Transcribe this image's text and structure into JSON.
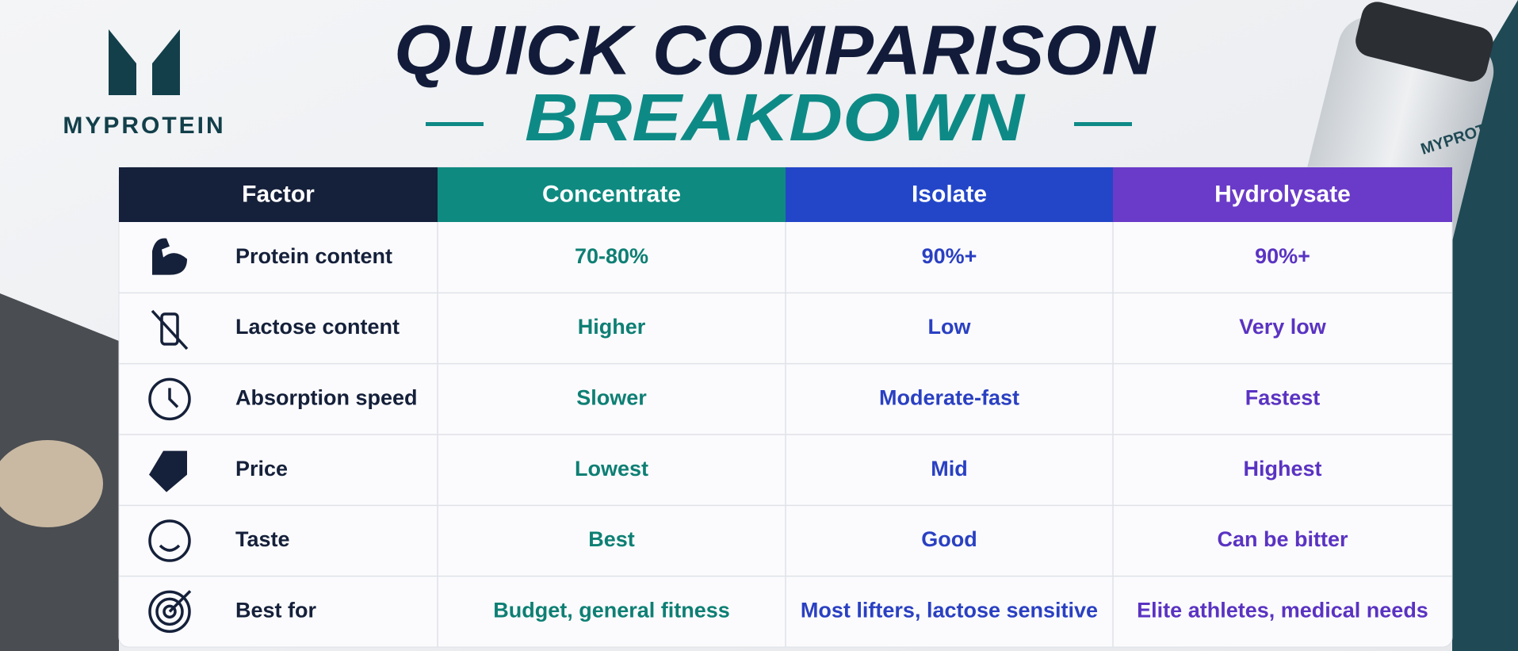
{
  "brand": "MYPROTEIN",
  "title": {
    "line1": "QUICK COMPARISON",
    "line2": "BREAKDOWN"
  },
  "bottle_brand": "MYPROTEIN",
  "table": {
    "header": [
      "Factor",
      "Concentrate",
      "Isolate",
      "Hydrolysate"
    ],
    "rows": [
      [
        "Protein content",
        "70-80%",
        "90%+",
        "90%+"
      ],
      [
        "Lactose content",
        "Higher",
        "Low",
        "Very low"
      ],
      [
        "Absorption speed",
        "Slower",
        "Moderate-fast",
        "Fastest"
      ],
      [
        "Price",
        "Lowest",
        "Mid",
        "Highest"
      ],
      [
        "Taste",
        "Best",
        "Good",
        "Can be bitter"
      ],
      [
        "Best for",
        "Budget, general fitness",
        "Most lifters, lactose sensitive",
        "Elite athletes, medical needs"
      ]
    ]
  }
}
